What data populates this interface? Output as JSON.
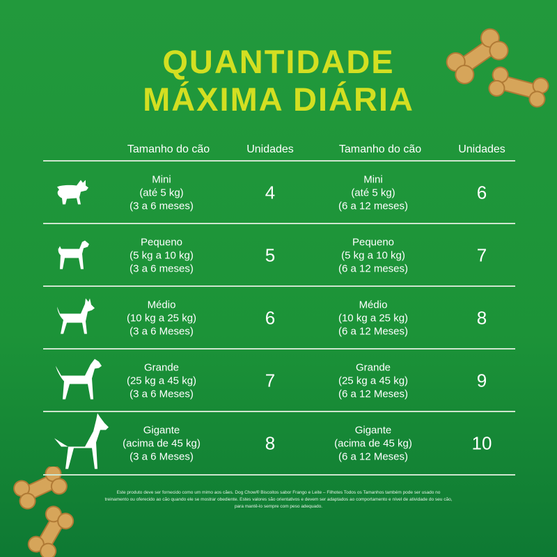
{
  "title": [
    "QUANTIDADE",
    "MÁXIMA DIÁRIA"
  ],
  "headers": {
    "size_left": "Tamanho do cão",
    "units_left": "Unidades",
    "size_right": "Tamanho do cão",
    "units_right": "Unidades"
  },
  "rows": [
    {
      "dog_icon": "french-bulldog-icon",
      "left": [
        "Mini",
        "(até 5 kg)",
        "(3 a 6 meses)"
      ],
      "left_units": "4",
      "right": [
        "Mini",
        "(até 5 kg)",
        "(6 a 12 meses)"
      ],
      "right_units": "6"
    },
    {
      "dog_icon": "terrier-icon",
      "left": [
        "Pequeno",
        "(5 kg a 10 kg)",
        "(3 a 6 meses)"
      ],
      "left_units": "5",
      "right": [
        "Pequeno",
        "(5 kg a 10 kg)",
        "(6 a 12 meses)"
      ],
      "right_units": "7"
    },
    {
      "dog_icon": "medium-dog-icon",
      "left": [
        "Médio",
        "(10 kg a 25 kg)",
        "(3 a 6 Meses)"
      ],
      "left_units": "6",
      "right": [
        "Médio",
        "(10 kg a 25 kg)",
        "(6 a 12 Meses)"
      ],
      "right_units": "8"
    },
    {
      "dog_icon": "large-dog-icon",
      "left": [
        "Grande",
        "(25 kg a 45 kg)",
        "(3 a 6 Meses)"
      ],
      "left_units": "7",
      "right": [
        "Grande",
        "(25 kg a 45 kg)",
        "(6 a 12 Meses)"
      ],
      "right_units": "9"
    },
    {
      "dog_icon": "great-dane-icon",
      "left": [
        "Gigante",
        "(acima de 45 kg)",
        "(3 a 6 Meses)"
      ],
      "left_units": "8",
      "right": [
        "Gigante",
        "(acima de 45 kg)",
        "(6 a 12 Meses)"
      ],
      "right_units": "10"
    }
  ],
  "footnote": "Este produto deve ser fornecido como um mimo aos cães. Dog Chow® Biscoitos sabor Frango e Leite – Filhotes Todos os Tamanhos também pode ser usado no treinamento ou oferecido ao cão quando ele se mostrar obediente. Estes valores são orientativos e devem ser adaptados ao comportamento e nível de atividade do seu cão, para mantê-lo sempre com peso adequado.",
  "colors": {
    "title": "#d3df22",
    "background": "#1c9338",
    "biscuit": "#d6a55a"
  }
}
